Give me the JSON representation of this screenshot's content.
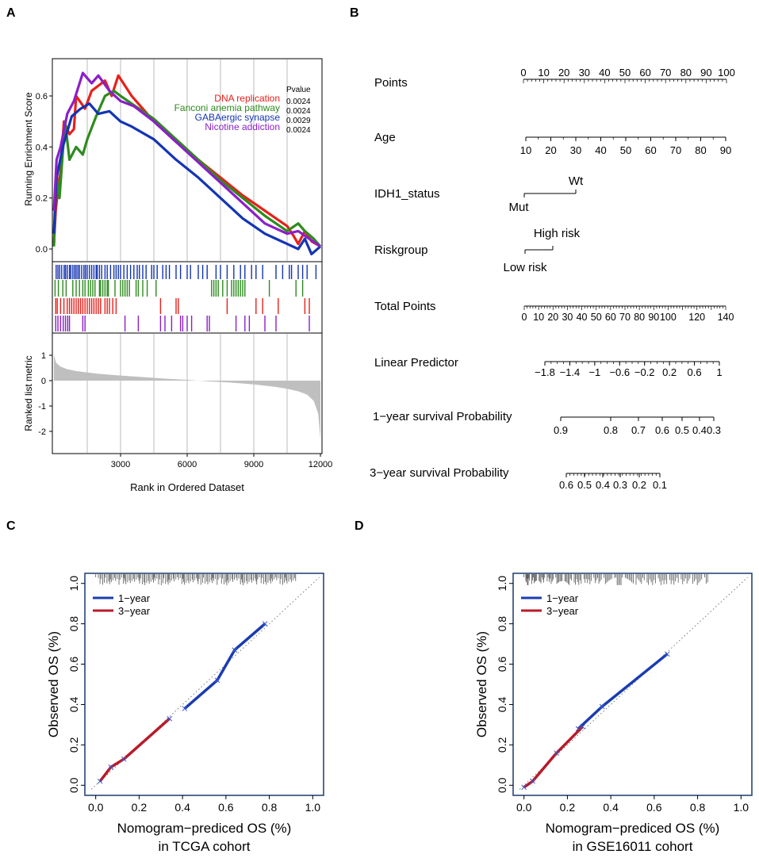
{
  "panels": {
    "A": "A",
    "B": "B",
    "C": "C",
    "D": "D"
  },
  "colors": {
    "red": "#e8201a",
    "green": "#2e8b1e",
    "blue": "#1434b4",
    "purple": "#8b1fc8",
    "cal_blue": "#1a3cb0",
    "cal_red": "#b81a2a",
    "grey_fill": "#bfbfbf",
    "frame_blue": "#1a3a6e"
  },
  "chart_data": [
    {
      "id": "gsea",
      "type": "line",
      "title": "",
      "ylabel": "Running Enrichment Score",
      "ylim": [
        -0.02,
        0.75
      ],
      "yticks": [
        "0.0",
        "0.2",
        "0.4",
        "0.6"
      ],
      "pvalue_header": "Pvalue",
      "series": [
        {
          "name": "DNA replication",
          "color_key": "red",
          "pvalue": "0.0024",
          "x": [
            0,
            80,
            200,
            300,
            450,
            700,
            900,
            1000,
            1400,
            1700,
            2000,
            2300,
            2600,
            2900,
            3500,
            4500,
            5500,
            6500,
            7500,
            8500,
            9000,
            9500,
            10000,
            10500,
            10800,
            11000,
            11300,
            11600,
            12000
          ],
          "y": [
            0.02,
            0.15,
            0.25,
            0.3,
            0.5,
            0.45,
            0.47,
            0.6,
            0.55,
            0.62,
            0.64,
            0.66,
            0.6,
            0.68,
            0.6,
            0.5,
            0.42,
            0.35,
            0.28,
            0.21,
            0.18,
            0.15,
            0.12,
            0.09,
            0.05,
            0.02,
            0.07,
            0.03,
            0.01
          ]
        },
        {
          "name": "Fanconi anemia pathway",
          "color_key": "green",
          "pvalue": "0.0024",
          "x": [
            0,
            100,
            250,
            500,
            700,
            1000,
            1300,
            1500,
            1900,
            2300,
            2700,
            3000,
            3500,
            4500,
            5500,
            6500,
            7500,
            8500,
            9500,
            10500,
            11000,
            11300,
            11700,
            12000
          ],
          "y": [
            0.01,
            0.3,
            0.2,
            0.5,
            0.35,
            0.4,
            0.37,
            0.43,
            0.52,
            0.6,
            0.62,
            0.6,
            0.57,
            0.51,
            0.43,
            0.35,
            0.27,
            0.2,
            0.13,
            0.07,
            0.1,
            0.07,
            0.04,
            0.01
          ]
        },
        {
          "name": "GABAergic synapse",
          "color_key": "blue",
          "pvalue": "0.0029",
          "x": [
            0,
            100,
            400,
            800,
            1200,
            1600,
            2000,
            2500,
            3000,
            3500,
            4500,
            5500,
            6500,
            7500,
            8500,
            9500,
            10000,
            10500,
            11000,
            11300,
            11600,
            12000
          ],
          "y": [
            0.06,
            0.27,
            0.4,
            0.52,
            0.55,
            0.57,
            0.53,
            0.54,
            0.5,
            0.48,
            0.43,
            0.35,
            0.28,
            0.2,
            0.12,
            0.06,
            0.04,
            0.02,
            0.0,
            0.04,
            -0.02,
            0.01
          ]
        },
        {
          "name": "Nicotine addiction",
          "color_key": "purple",
          "pvalue": "0.0024",
          "x": [
            0,
            120,
            300,
            600,
            900,
            1300,
            1700,
            2000,
            2500,
            3000,
            3600,
            4500,
            5500,
            6500,
            7500,
            8500,
            9500,
            10500,
            11000,
            11500,
            12000
          ],
          "y": [
            0.15,
            0.35,
            0.4,
            0.53,
            0.58,
            0.69,
            0.65,
            0.68,
            0.62,
            0.58,
            0.56,
            0.5,
            0.42,
            0.34,
            0.26,
            0.18,
            0.1,
            0.06,
            0.07,
            0.04,
            0.01
          ]
        }
      ],
      "hits": {
        "blue": [
          100,
          180,
          260,
          350,
          460,
          520,
          600,
          700,
          760,
          850,
          930,
          1000,
          1080,
          1150,
          1250,
          1350,
          1420,
          1500,
          1600,
          1700,
          1800,
          1900,
          1950,
          2050,
          2150,
          2300,
          2400,
          2550,
          2700,
          2800,
          2900,
          3000,
          3150,
          3300,
          3450,
          3600,
          3750,
          3850,
          4000,
          4150,
          4400,
          4500,
          4650,
          4900,
          5050,
          5200,
          5500,
          5700,
          6000,
          6150,
          6500,
          6700,
          6900,
          7300,
          7500,
          7800,
          8100,
          8400,
          8600,
          8900,
          9100,
          9400,
          10000,
          10300,
          10600,
          10700,
          11000,
          11200,
          11400,
          11800
        ],
        "green": [
          50,
          200,
          400,
          550,
          850,
          1000,
          1150,
          1300,
          1400,
          1550,
          1650,
          1750,
          1850,
          2050,
          2100,
          2200,
          2300,
          2400,
          2450,
          2750,
          3000,
          3100,
          3200,
          3300,
          3400,
          3700,
          3800,
          4000,
          4200,
          4600,
          7100,
          7200,
          7300,
          7400,
          7600,
          7800,
          8000,
          8100,
          8200,
          8300,
          8400,
          8500,
          8600,
          9700,
          10900,
          11200
        ],
        "red": [
          80,
          150,
          300,
          450,
          600,
          700,
          800,
          900,
          1000,
          1100,
          1200,
          1300,
          1400,
          1500,
          1600,
          1700,
          1800,
          1900,
          2000,
          2100,
          2300,
          2400,
          2500,
          2650,
          2800,
          4800,
          5500,
          5600,
          7800,
          9100,
          9400,
          10100,
          11300,
          11500
        ],
        "purple": [
          80,
          180,
          300,
          420,
          520,
          620,
          700,
          1300,
          1400,
          3200,
          3800,
          4800,
          5000,
          5300,
          5700,
          5800,
          6000,
          6200,
          6900,
          7000,
          8200,
          8600,
          8800,
          9500,
          10000,
          11500
        ]
      }
    },
    {
      "id": "ranked",
      "type": "area",
      "xlabel": "Rank in Ordered Dataset",
      "ylabel": "Ranked list metric",
      "xlim": [
        0,
        12000
      ],
      "ylim": [
        -2.4,
        1.4
      ],
      "xticks": [
        "3000",
        "6000",
        "9000",
        "12000"
      ],
      "yticks": [
        "1",
        "0",
        "-1",
        "-2"
      ],
      "x": [
        0,
        100,
        300,
        600,
        1000,
        1500,
        2000,
        3000,
        4000,
        5000,
        6000,
        7000,
        8000,
        9000,
        10000,
        10500,
        11000,
        11400,
        11700,
        11900,
        12000
      ],
      "y": [
        1.0,
        0.7,
        0.55,
        0.45,
        0.38,
        0.32,
        0.27,
        0.2,
        0.14,
        0.08,
        0.03,
        -0.03,
        -0.08,
        -0.15,
        -0.25,
        -0.32,
        -0.42,
        -0.55,
        -0.8,
        -1.3,
        -2.3
      ]
    },
    {
      "id": "nomogram",
      "type": "nomogram",
      "rows": [
        {
          "label": "Points",
          "ticks": [
            "0",
            "10",
            "20",
            "30",
            "40",
            "50",
            "60",
            "70",
            "80",
            "90",
            "100"
          ]
        },
        {
          "label": "Age",
          "ticks": [
            "10",
            "20",
            "30",
            "40",
            "50",
            "60",
            "70",
            "80",
            "90"
          ]
        },
        {
          "label": "IDH1_status",
          "ticks": [
            "Mut",
            "Wt"
          ]
        },
        {
          "label": "Riskgroup",
          "ticks": [
            "Low risk",
            "High risk"
          ]
        },
        {
          "label": "Total Points",
          "ticks": [
            "0",
            "10",
            "20",
            "30",
            "40",
            "50",
            "60",
            "70",
            "80",
            "90",
            "100",
            "120",
            "140"
          ]
        },
        {
          "label": "Linear Predictor",
          "ticks": [
            "−1.8",
            "−1.4",
            "−1",
            "−0.6",
            "−0.2",
            "0.2",
            "0.6",
            "1"
          ]
        },
        {
          "label": "1−year survival Probability",
          "ticks": [
            "0.9",
            "0.8",
            "0.7",
            "0.6",
            "0.5",
            "0.4",
            "0.3"
          ]
        },
        {
          "label": "3−year survival Probability",
          "ticks": [
            "0.6",
            "0.5",
            "0.4",
            "0.3",
            "0.2",
            "0.1"
          ]
        }
      ]
    },
    {
      "id": "cal_tcga",
      "type": "line",
      "xlabel": "Nomogram−prediced OS (%)",
      "xlabel2": "in TCGA cohort",
      "ylabel": "Observed OS (%)",
      "xlim": [
        -0.05,
        1.05
      ],
      "ylim": [
        -0.05,
        1.05
      ],
      "xticks": [
        "0.0",
        "0.2",
        "0.4",
        "0.6",
        "0.8",
        "1.0"
      ],
      "yticks": [
        "0.0",
        "0.2",
        "0.4",
        "0.6",
        "0.8",
        "1.0"
      ],
      "legend": [
        "1−year",
        "3−year"
      ],
      "series": [
        {
          "name": "1−year",
          "color_key": "cal_blue",
          "x": [
            0.41,
            0.56,
            0.64,
            0.78
          ],
          "y": [
            0.38,
            0.52,
            0.67,
            0.8
          ]
        },
        {
          "name": "3−year",
          "color_key": "cal_red",
          "x": [
            0.02,
            0.07,
            0.13,
            0.34
          ],
          "y": [
            0.02,
            0.09,
            0.13,
            0.33
          ]
        }
      ]
    },
    {
      "id": "cal_gse",
      "type": "line",
      "xlabel": "Nomogram−prediced OS (%)",
      "xlabel2": "in GSE16011 cohort",
      "ylabel": "Observed OS (%)",
      "xlim": [
        -0.05,
        1.05
      ],
      "ylim": [
        -0.05,
        1.05
      ],
      "xticks": [
        "0.0",
        "0.2",
        "0.4",
        "0.6",
        "0.8",
        "1.0"
      ],
      "yticks": [
        "0.0",
        "0.2",
        "0.4",
        "0.6",
        "0.8",
        "1.0"
      ],
      "legend": [
        "1−year",
        "3−year"
      ],
      "series": [
        {
          "name": "1−year",
          "color_key": "cal_blue",
          "x": [
            0.25,
            0.36,
            0.66
          ],
          "y": [
            0.28,
            0.39,
            0.65
          ]
        },
        {
          "name": "3−year",
          "color_key": "cal_red",
          "x": [
            0.0,
            0.04,
            0.15,
            0.27
          ],
          "y": [
            -0.01,
            0.02,
            0.16,
            0.29
          ]
        }
      ]
    }
  ]
}
